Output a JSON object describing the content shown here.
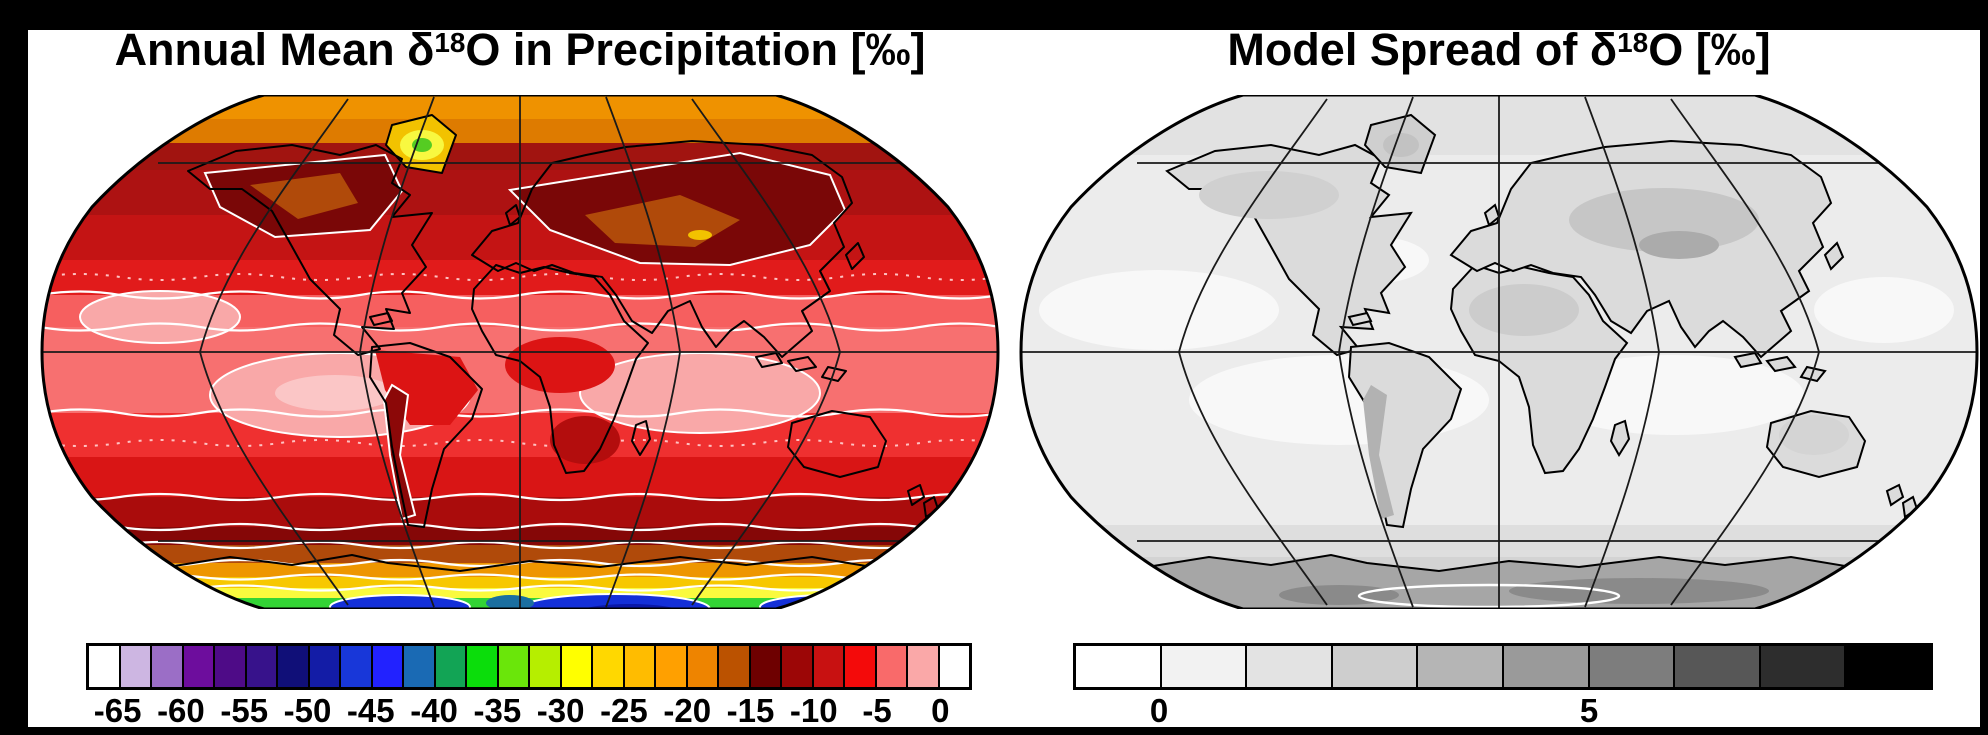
{
  "figure": {
    "background_color": "#000000",
    "panel_color": "#ffffff",
    "left_panel": {
      "title_prefix": "Annual Mean δ",
      "title_sup": "18",
      "title_suffix": "O in Precipitation [‰]"
    },
    "right_panel": {
      "title_prefix": "Model Spread of δ",
      "title_sup": "18",
      "title_suffix": "O [‰]"
    }
  },
  "colorbars": {
    "left": {
      "cells": [
        "#ffffff",
        "#cdb6e2",
        "#9b6ec6",
        "#6d0d9d",
        "#4e0b87",
        "#37128b",
        "#100f78",
        "#131ca6",
        "#1837d9",
        "#2222ff",
        "#1a6ab4",
        "#12a455",
        "#0bdd0b",
        "#6ae60a",
        "#b6ee00",
        "#ffff00",
        "#ffd800",
        "#ffbc00",
        "#ffa000",
        "#ee8400",
        "#bb5200",
        "#6e0000",
        "#9c0606",
        "#c81111",
        "#f40a0a",
        "#f96a6a",
        "#faa8a8",
        "#ffffff"
      ],
      "ticks": [
        {
          "label": "-65",
          "boundary": 1
        },
        {
          "label": "-60",
          "boundary": 3
        },
        {
          "label": "-55",
          "boundary": 5
        },
        {
          "label": "-50",
          "boundary": 7
        },
        {
          "label": "-45",
          "boundary": 9
        },
        {
          "label": "-40",
          "boundary": 11
        },
        {
          "label": "-35",
          "boundary": 13
        },
        {
          "label": "-30",
          "boundary": 15
        },
        {
          "label": "-25",
          "boundary": 17
        },
        {
          "label": "-20",
          "boundary": 19
        },
        {
          "label": "-15",
          "boundary": 21
        },
        {
          "label": "-10",
          "boundary": 23
        },
        {
          "label": "-5",
          "boundary": 25
        },
        {
          "label": "0",
          "boundary": 27
        }
      ]
    },
    "right": {
      "cells": [
        "#ffffff",
        "#f2f2f2",
        "#e3e3e3",
        "#cecece",
        "#b5b5b5",
        "#9a9a9a",
        "#7d7d7d",
        "#575757",
        "#2d2d2d",
        "#000000"
      ],
      "ticks": [
        {
          "label": "0",
          "boundary": 1
        },
        {
          "label": "5",
          "boundary": 6
        }
      ]
    }
  },
  "chart_data": [
    {
      "type": "heatmap",
      "title": "Annual Mean δ18O in Precipitation [‰]",
      "projection": "robinson",
      "units": "permil (‰)",
      "contour_interval": 2.5,
      "levels": [
        -65,
        -62.5,
        -60,
        -57.5,
        -55,
        -52.5,
        -50,
        -47.5,
        -45,
        -42.5,
        -40,
        -37.5,
        -35,
        -32.5,
        -30,
        -27.5,
        -25,
        -22.5,
        -20,
        -17.5,
        -15,
        -12.5,
        -10,
        -7.5,
        -5,
        -2.5,
        0
      ],
      "colors": [
        "#ffffff",
        "#cdb6e2",
        "#9b6ec6",
        "#6d0d9d",
        "#4e0b87",
        "#37128b",
        "#100f78",
        "#131ca6",
        "#1837d9",
        "#2222ff",
        "#1a6ab4",
        "#12a455",
        "#0bdd0b",
        "#6ae60a",
        "#b6ee00",
        "#ffff00",
        "#ffd800",
        "#ffbc00",
        "#ffa000",
        "#ee8400",
        "#bb5200",
        "#6e0000",
        "#9c0606",
        "#c81111",
        "#f40a0a",
        "#f96a6a",
        "#faa8a8",
        "#ffffff"
      ],
      "colorbar_ticks": [
        -65,
        -60,
        -55,
        -50,
        -45,
        -40,
        -35,
        -30,
        -25,
        -20,
        -15,
        -10,
        -5,
        0
      ],
      "graticule": {
        "parallels_deg": [
          -60,
          0,
          60
        ],
        "meridians_deg_from_center": [
          -120,
          -60,
          0,
          60,
          120
        ]
      },
      "regional_values_permil": {
        "tropical_subtropical_oceans": "-2.5 to -5",
        "subtropical_gyre_minima": "0 to -2.5",
        "tropical_land_amazon_africa": "-5 to -10",
        "andes_ridge": "-12.5 to -17.5",
        "northern_mid_latitude_land": "-10 to -15",
        "tibet_himalaya": "-15 to -20",
        "arctic_ocean_coast": "-17.5 to -25",
        "greenland_interior": "-27.5 to -35",
        "southern_ocean_band": "-7.5 to -15",
        "antarctic_coast_fringe": "-20 to -32.5",
        "antarctic_interior": "-37.5 to -52.5"
      }
    },
    {
      "type": "heatmap",
      "title": "Model Spread of δ18O [‰]",
      "projection": "robinson",
      "units": "permil (‰)",
      "contour_interval": 1,
      "levels": [
        0,
        1,
        2,
        3,
        4,
        5,
        6,
        7,
        8
      ],
      "colors": [
        "#ffffff",
        "#f2f2f2",
        "#e3e3e3",
        "#cecece",
        "#b5b5b5",
        "#9a9a9a",
        "#7d7d7d",
        "#575757",
        "#2d2d2d",
        "#000000"
      ],
      "colorbar_ticks": [
        0,
        5
      ],
      "graticule": {
        "parallels_deg": [
          -60,
          0,
          60
        ],
        "meridians_deg_from_center": [
          -120,
          -60,
          0,
          60,
          120
        ]
      },
      "regional_values_permil": {
        "subtropical_oceans": "0 to 1",
        "mid_latitude_oceans": "1 to 2",
        "most_land": "1 to 2",
        "north_africa_interior": "2 to 3",
        "central_asia_tibet": "2 to 4",
        "andes_ridge": "2 to 4",
        "greenland": "2 to 3",
        "southern_ocean": "2 to 3",
        "antarctica": "3 to 6"
      }
    }
  ]
}
